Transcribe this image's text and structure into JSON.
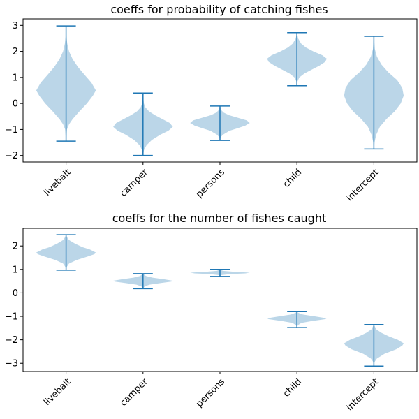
{
  "chart_data": [
    {
      "type": "violin",
      "title": "coeffs for probability of catching fishes",
      "categories": [
        "livebait",
        "camper",
        "persons",
        "child",
        "intercept"
      ],
      "ylim": [
        -2.25,
        3.25
      ],
      "yticks": [
        -2,
        -1,
        0,
        1,
        2,
        3
      ],
      "ytick_labels": [
        "−2",
        "−1",
        "0",
        "1",
        "2",
        "3"
      ],
      "distributions": [
        {
          "min": -1.45,
          "max": 2.98,
          "shape": [
            [
              -1.45,
              0.0
            ],
            [
              -1.3,
              0.01
            ],
            [
              -1.0,
              0.03
            ],
            [
              -0.8,
              0.1
            ],
            [
              -0.6,
              0.22
            ],
            [
              -0.3,
              0.45
            ],
            [
              0.0,
              0.7
            ],
            [
              0.3,
              0.9
            ],
            [
              0.5,
              1.0
            ],
            [
              0.8,
              0.85
            ],
            [
              1.1,
              0.62
            ],
            [
              1.4,
              0.4
            ],
            [
              1.7,
              0.22
            ],
            [
              2.0,
              0.1
            ],
            [
              2.3,
              0.04
            ],
            [
              2.6,
              0.01
            ],
            [
              2.98,
              0.0
            ]
          ]
        },
        {
          "min": -2.0,
          "max": 0.4,
          "shape": [
            [
              -2.0,
              0.0
            ],
            [
              -1.8,
              0.03
            ],
            [
              -1.6,
              0.12
            ],
            [
              -1.4,
              0.3
            ],
            [
              -1.2,
              0.58
            ],
            [
              -1.05,
              0.85
            ],
            [
              -0.9,
              1.0
            ],
            [
              -0.75,
              0.9
            ],
            [
              -0.6,
              0.65
            ],
            [
              -0.45,
              0.4
            ],
            [
              -0.3,
              0.2
            ],
            [
              -0.15,
              0.08
            ],
            [
              0.0,
              0.03
            ],
            [
              0.2,
              0.01
            ],
            [
              0.4,
              0.0
            ]
          ]
        },
        {
          "min": -1.42,
          "max": -0.1,
          "shape": [
            [
              -1.42,
              0.0
            ],
            [
              -1.3,
              0.02
            ],
            [
              -1.2,
              0.1
            ],
            [
              -1.05,
              0.32
            ],
            [
              -0.95,
              0.6
            ],
            [
              -0.85,
              0.85
            ],
            [
              -0.75,
              1.0
            ],
            [
              -0.65,
              0.9
            ],
            [
              -0.55,
              0.6
            ],
            [
              -0.45,
              0.3
            ],
            [
              -0.35,
              0.12
            ],
            [
              -0.25,
              0.04
            ],
            [
              -0.1,
              0.0
            ]
          ]
        },
        {
          "min": 0.68,
          "max": 2.72,
          "shape": [
            [
              0.68,
              0.0
            ],
            [
              0.85,
              0.02
            ],
            [
              1.0,
              0.08
            ],
            [
              1.15,
              0.25
            ],
            [
              1.3,
              0.5
            ],
            [
              1.45,
              0.75
            ],
            [
              1.6,
              0.95
            ],
            [
              1.72,
              1.0
            ],
            [
              1.85,
              0.85
            ],
            [
              2.0,
              0.55
            ],
            [
              2.15,
              0.3
            ],
            [
              2.3,
              0.14
            ],
            [
              2.5,
              0.04
            ],
            [
              2.72,
              0.0
            ]
          ]
        },
        {
          "min": -1.75,
          "max": 2.58,
          "shape": [
            [
              -1.75,
              0.0
            ],
            [
              -1.5,
              0.02
            ],
            [
              -1.2,
              0.08
            ],
            [
              -0.9,
              0.2
            ],
            [
              -0.6,
              0.42
            ],
            [
              -0.3,
              0.7
            ],
            [
              0.0,
              0.9
            ],
            [
              0.3,
              1.0
            ],
            [
              0.6,
              0.95
            ],
            [
              0.9,
              0.78
            ],
            [
              1.2,
              0.48
            ],
            [
              1.5,
              0.25
            ],
            [
              1.8,
              0.1
            ],
            [
              2.1,
              0.03
            ],
            [
              2.58,
              0.0
            ]
          ]
        }
      ]
    },
    {
      "type": "violin",
      "title": "coeffs for the number of fishes caught",
      "categories": [
        "livebait",
        "camper",
        "persons",
        "child",
        "intercept"
      ],
      "ylim": [
        -3.35,
        2.75
      ],
      "yticks": [
        -3,
        -2,
        -1,
        0,
        1,
        2
      ],
      "ytick_labels": [
        "−3",
        "−2",
        "−1",
        "0",
        "1",
        "2"
      ],
      "distributions": [
        {
          "min": 0.97,
          "max": 2.48,
          "shape": [
            [
              0.97,
              0.0
            ],
            [
              1.1,
              0.02
            ],
            [
              1.25,
              0.1
            ],
            [
              1.4,
              0.35
            ],
            [
              1.55,
              0.72
            ],
            [
              1.65,
              0.95
            ],
            [
              1.72,
              1.0
            ],
            [
              1.85,
              0.8
            ],
            [
              1.95,
              0.55
            ],
            [
              2.1,
              0.3
            ],
            [
              2.25,
              0.1
            ],
            [
              2.38,
              0.03
            ],
            [
              2.48,
              0.0
            ]
          ]
        },
        {
          "min": 0.18,
          "max": 0.82,
          "shape": [
            [
              0.18,
              0.0
            ],
            [
              0.28,
              0.06
            ],
            [
              0.35,
              0.22
            ],
            [
              0.42,
              0.6
            ],
            [
              0.48,
              0.95
            ],
            [
              0.52,
              1.0
            ],
            [
              0.58,
              0.7
            ],
            [
              0.65,
              0.32
            ],
            [
              0.72,
              0.1
            ],
            [
              0.82,
              0.0
            ]
          ]
        },
        {
          "min": 0.7,
          "max": 1.0,
          "shape": [
            [
              0.7,
              0.0
            ],
            [
              0.76,
              0.05
            ],
            [
              0.8,
              0.35
            ],
            [
              0.83,
              0.85
            ],
            [
              0.86,
              1.0
            ],
            [
              0.9,
              0.45
            ],
            [
              0.94,
              0.1
            ],
            [
              1.0,
              0.0
            ]
          ]
        },
        {
          "min": -1.48,
          "max": -0.8,
          "shape": [
            [
              -1.48,
              0.0
            ],
            [
              -1.38,
              0.03
            ],
            [
              -1.28,
              0.15
            ],
            [
              -1.2,
              0.5
            ],
            [
              -1.12,
              0.95
            ],
            [
              -1.08,
              1.0
            ],
            [
              -1.0,
              0.6
            ],
            [
              -0.92,
              0.2
            ],
            [
              -0.85,
              0.05
            ],
            [
              -0.8,
              0.0
            ]
          ]
        },
        {
          "min": -3.12,
          "max": -1.35,
          "shape": [
            [
              -3.12,
              0.0
            ],
            [
              -2.95,
              0.02
            ],
            [
              -2.8,
              0.1
            ],
            [
              -2.6,
              0.35
            ],
            [
              -2.4,
              0.75
            ],
            [
              -2.25,
              0.95
            ],
            [
              -2.15,
              1.0
            ],
            [
              -2.0,
              0.8
            ],
            [
              -1.85,
              0.5
            ],
            [
              -1.7,
              0.25
            ],
            [
              -1.55,
              0.08
            ],
            [
              -1.35,
              0.0
            ]
          ]
        }
      ]
    }
  ]
}
